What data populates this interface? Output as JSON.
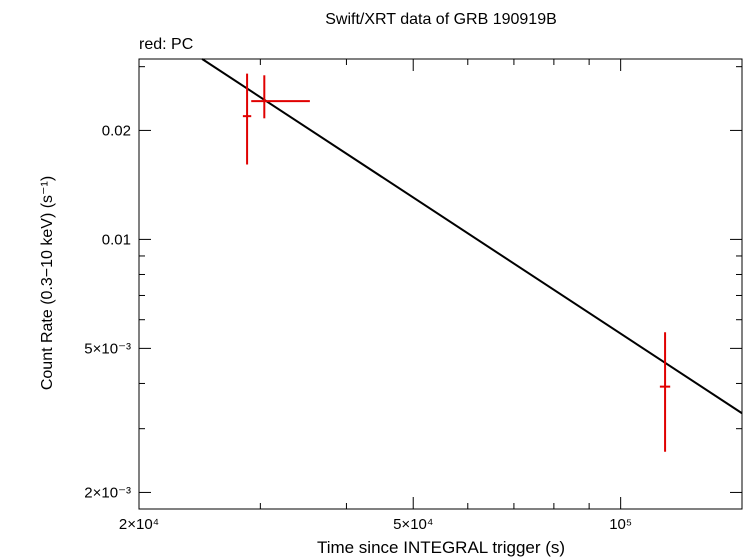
{
  "chart_data": {
    "type": "scatter",
    "title": "Swift/XRT data of GRB 190919B",
    "subtitle": "red: PC",
    "xlabel": "Time since INTEGRAL trigger (s)",
    "ylabel": "Count Rate (0.3−10 keV) (s⁻¹)",
    "xscale": "log",
    "yscale": "log",
    "xlim": [
      20000,
      150000
    ],
    "ylim": [
      0.0018,
      0.0315
    ],
    "grid": false,
    "x_ticks_major": [
      {
        "value": 20000,
        "label": "2×10⁴"
      },
      {
        "value": 50000,
        "label": "5×10⁴"
      },
      {
        "value": 100000,
        "label": "10⁵"
      }
    ],
    "x_ticks_minor": [
      30000,
      40000,
      60000,
      70000,
      80000,
      90000
    ],
    "y_ticks_major": [
      {
        "value": 0.002,
        "label": "2×10⁻³"
      },
      {
        "value": 0.005,
        "label": "5×10⁻³"
      },
      {
        "value": 0.01,
        "label": "0.01"
      },
      {
        "value": 0.02,
        "label": "0.02"
      }
    ],
    "y_ticks_minor": [
      0.003,
      0.004,
      0.006,
      0.007,
      0.008,
      0.009,
      0.03
    ],
    "series": [
      {
        "name": "PC",
        "color": "#e00000",
        "points": [
          {
            "x": 28700,
            "y": 0.0219,
            "xerr": [
              400,
              400
            ],
            "yerr": [
              0.0058,
              0.0068
            ]
          },
          {
            "x": 30400,
            "y": 0.0241,
            "xerr": [
              1300,
              5000
            ],
            "yerr": [
              0.0025,
              0.0043
            ]
          },
          {
            "x": 116000,
            "y": 0.00392,
            "xerr": [
              2000,
              2000
            ],
            "yerr": [
              0.00133,
              0.00162
            ]
          }
        ]
      }
    ],
    "model_line": {
      "color": "#000000",
      "points": [
        {
          "x": 24700,
          "y": 0.0315
        },
        {
          "x": 150000,
          "y": 0.00331
        }
      ]
    }
  }
}
